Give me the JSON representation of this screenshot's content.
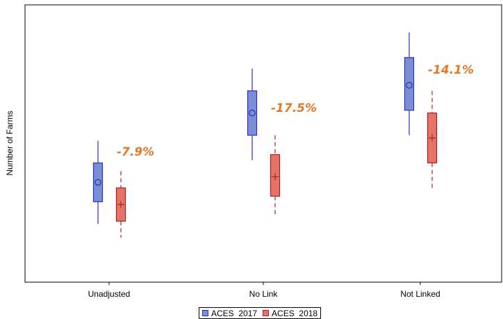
{
  "chart_data": {
    "type": "box",
    "title": "",
    "xlabel": "",
    "ylabel": "Number of Farms",
    "categories": [
      "Unadjusted",
      "No Link",
      "Not Linked"
    ],
    "ylim": [
      0,
      100
    ],
    "y_tick_labels_shown": false,
    "grid": false,
    "legend_position": "bottom-center",
    "series": [
      {
        "name": "ACES  2017",
        "color": "#7b8fd4",
        "edge_color": "#2a2fb8",
        "marker": "circle",
        "whisker_style": "solid",
        "boxes": [
          {
            "whisker_low": 21,
            "q1": 29,
            "mean": 36,
            "q3": 43,
            "whisker_high": 51
          },
          {
            "whisker_low": 44,
            "q1": 53,
            "mean": 61,
            "q3": 69,
            "whisker_high": 77
          },
          {
            "whisker_low": 53,
            "q1": 62,
            "mean": 71,
            "q3": 81,
            "whisker_high": 90
          }
        ]
      },
      {
        "name": "ACES  2018",
        "color": "#e57368",
        "edge_color": "#b41e23",
        "marker": "plus",
        "whisker_style": "dashed",
        "boxes": [
          {
            "whisker_low": 16,
            "q1": 22,
            "mean": 28,
            "q3": 34,
            "whisker_high": 40
          },
          {
            "whisker_low": 24,
            "q1": 31,
            "mean": 38,
            "q3": 46,
            "whisker_high": 53
          },
          {
            "whisker_low": 34,
            "q1": 43,
            "mean": 52,
            "q3": 61,
            "whisker_high": 69
          }
        ]
      }
    ],
    "annotations": [
      {
        "text": "-7.9%",
        "category": "Unadjusted"
      },
      {
        "text": "-17.5%",
        "category": "No Link"
      },
      {
        "text": "-14.1%",
        "category": "Not Linked"
      }
    ],
    "annotation_color": "#e07a2a"
  }
}
